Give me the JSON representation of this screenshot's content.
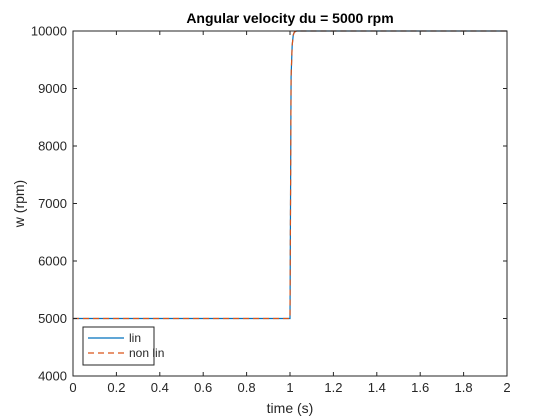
{
  "chart_data": {
    "type": "line",
    "title": "Angular velocity du = 5000 rpm",
    "xlabel": "time (s)",
    "ylabel": "w (rpm)",
    "xlim": [
      0,
      2
    ],
    "ylim": [
      4000,
      10000
    ],
    "xticks": [
      0,
      0.2,
      0.4,
      0.6,
      0.8,
      1,
      1.2,
      1.4,
      1.6,
      1.8,
      2
    ],
    "xtick_labels": [
      "0",
      "0.2",
      "0.4",
      "0.6",
      "0.8",
      "1",
      "1.2",
      "1.4",
      "1.6",
      "1.8",
      "2"
    ],
    "yticks": [
      4000,
      5000,
      6000,
      7000,
      8000,
      9000,
      10000
    ],
    "ytick_labels": [
      "4000",
      "5000",
      "6000",
      "7000",
      "8000",
      "9000",
      "10000"
    ],
    "grid": false,
    "legend_position": "bottom-left",
    "series": [
      {
        "name": "lin",
        "color": "#0072BD",
        "dash": "solid",
        "x": [
          0,
          1.0,
          1.005,
          1.01,
          1.015,
          1.02,
          1.03,
          2.0
        ],
        "y": [
          5000,
          5000,
          9200,
          9750,
          9930,
          9980,
          10000,
          10000
        ]
      },
      {
        "name": "non lin",
        "color": "#D95319",
        "dash": "dashed",
        "x": [
          0,
          1.0,
          1.005,
          1.01,
          1.015,
          1.02,
          1.03,
          2.0
        ],
        "y": [
          5000,
          5000,
          9200,
          9750,
          9930,
          9980,
          10000,
          10000
        ]
      }
    ]
  }
}
